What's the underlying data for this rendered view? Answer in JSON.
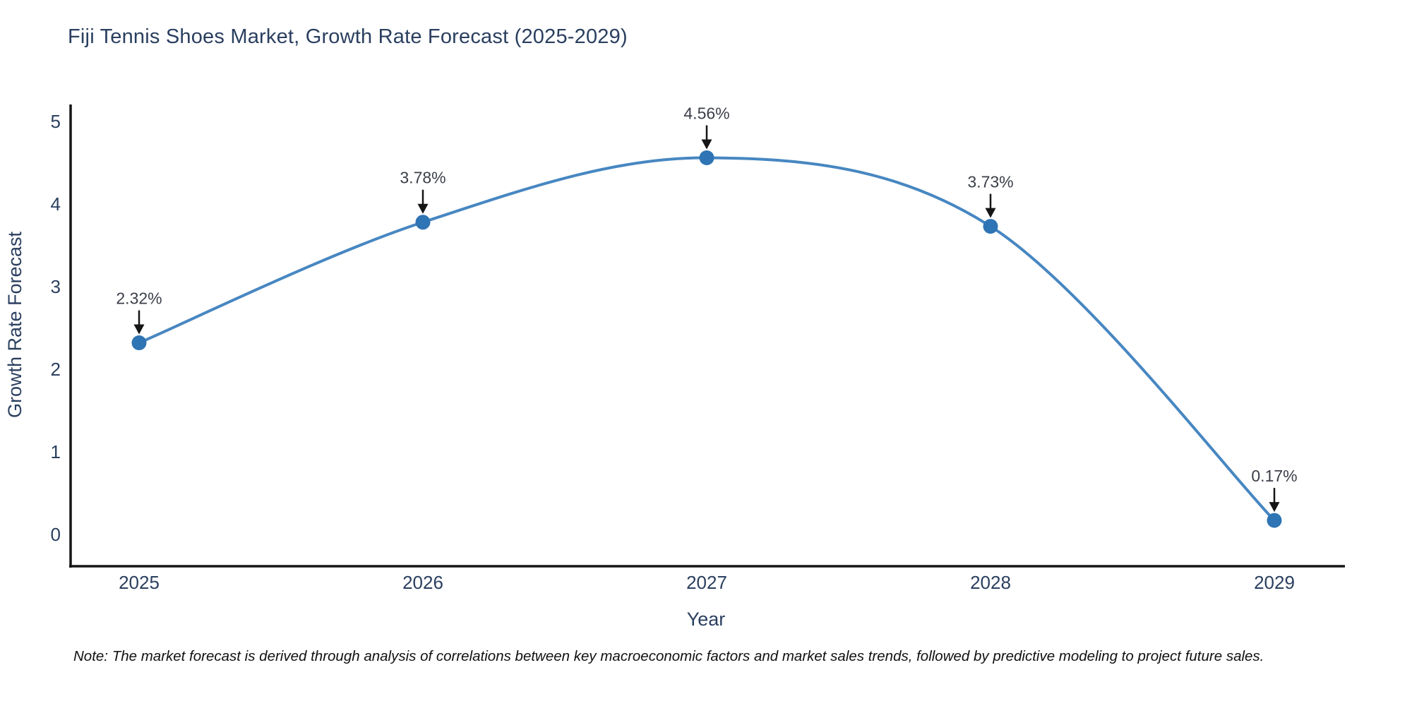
{
  "figure": {
    "note": "Note: The market forecast is derived through analysis of correlations between key macroeconomic factors and market sales trends, followed by predictive modeling to project future sales."
  },
  "chart_data": {
    "type": "line",
    "title": "Fiji Tennis Shoes Market, Growth Rate Forecast (2025-2029)",
    "xlabel": "Year",
    "ylabel": "Growth Rate Forecast",
    "categories": [
      "2025",
      "2026",
      "2027",
      "2028",
      "2029"
    ],
    "series": [
      {
        "name": "Growth Rate Forecast",
        "values": [
          2.32,
          3.78,
          4.56,
          3.73,
          0.17
        ],
        "point_labels": [
          "2.32%",
          "3.78%",
          "4.56%",
          "3.73%",
          "0.17%"
        ]
      }
    ],
    "yticks": [
      0,
      1,
      2,
      3,
      4,
      5
    ],
    "ylim": [
      0,
      5
    ],
    "line_shape": "spline",
    "grid": false,
    "legend": false,
    "annotations_have_arrows": true,
    "colors": {
      "line": "#4787c1",
      "marker": "#2f74b4",
      "axis": "#151515",
      "arrow": "#151515",
      "heading_text": "#2a3f5f",
      "annotation_text": "#3b3f49",
      "note_text": "#111111",
      "background": "#ffffff"
    }
  }
}
